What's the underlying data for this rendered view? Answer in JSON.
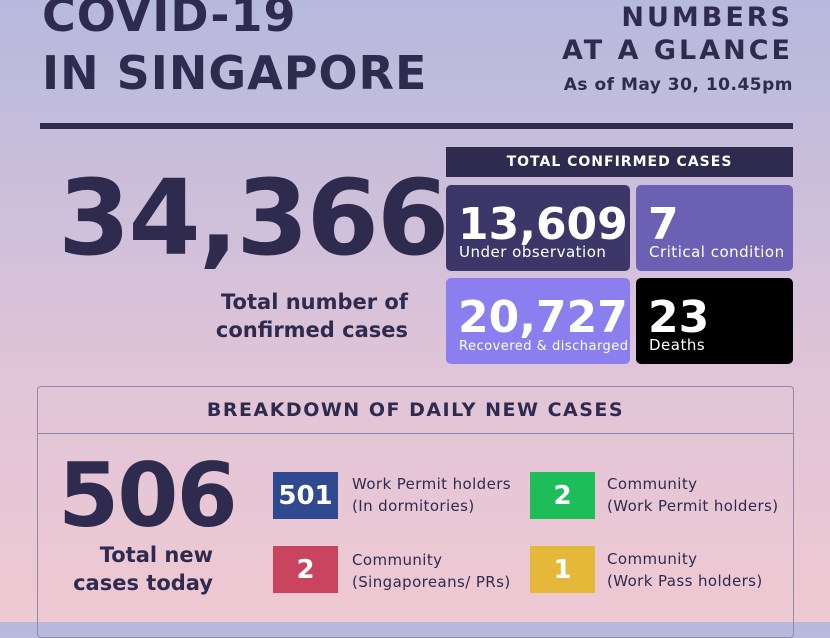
{
  "header": {
    "title_lines": [
      "COVID-19",
      "IN SINGAPORE"
    ],
    "subtitle_lines": [
      "NUMBERS",
      "AT A GLANCE"
    ],
    "as_of": "As of May 30, 10.45pm"
  },
  "total": {
    "value": "34,366",
    "label_lines": [
      "Total number of",
      "confirmed cases"
    ]
  },
  "confirmed": {
    "title": "TOTAL CONFIRMED CASES",
    "cells": [
      {
        "value": "13,609",
        "label": "Under observation"
      },
      {
        "value": "7",
        "label": "Critical condition"
      },
      {
        "value": "20,727",
        "label": "Recovered & discharged"
      },
      {
        "value": "23",
        "label": "Deaths"
      }
    ]
  },
  "breakdown": {
    "title": "BREAKDOWN OF DAILY NEW CASES",
    "total": {
      "value": "506",
      "label_lines": [
        "Total new",
        "cases today"
      ]
    },
    "items": [
      {
        "value": "501",
        "label_lines": [
          "Work Permit holders",
          "(In dormitories)"
        ]
      },
      {
        "value": "2",
        "label_lines": [
          "Community",
          "(Work Permit holders)"
        ]
      },
      {
        "value": "2",
        "label_lines": [
          "Community",
          "(Singaporeans/ PRs)"
        ]
      },
      {
        "value": "1",
        "label_lines": [
          "Community",
          "(Work Pass holders)"
        ]
      }
    ]
  }
}
